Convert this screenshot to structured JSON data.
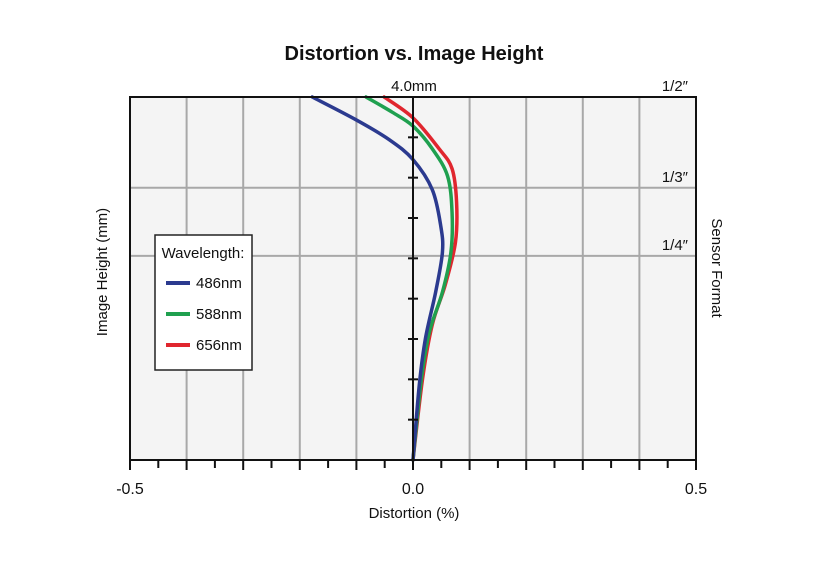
{
  "chart_data": {
    "type": "line",
    "title": "Distortion vs. Image Height",
    "xlabel": "Distortion (%)",
    "ylabel": "Image Height (mm)",
    "right_label": "Sensor Format",
    "xlim": [
      -0.5,
      0.5
    ],
    "ylim": [
      0,
      4.0
    ],
    "x_tick_labels": [
      {
        "value": -0.5,
        "label": "-0.5"
      },
      {
        "value": 0.0,
        "label": "0.0"
      },
      {
        "value": 0.5,
        "label": "0.5"
      }
    ],
    "x_grid_step": 0.1,
    "x_minor_step": 0.05,
    "y_top_label": "4.0mm",
    "y_minor_ticks": 9,
    "sensor_formats": [
      {
        "label": "1/2″",
        "height": 4.0
      },
      {
        "label": "1/3″",
        "height": 3.0
      },
      {
        "label": "1/4″",
        "height": 2.25
      }
    ],
    "grid": true,
    "legend": {
      "title": "Wavelength:",
      "placement": "left"
    },
    "series": [
      {
        "name": "486nm",
        "color": "#2b3a8f",
        "points": [
          [
            0,
            0
          ],
          [
            0.011,
            0.82
          ],
          [
            0.022,
            1.34
          ],
          [
            0.04,
            1.85
          ],
          [
            0.052,
            2.29
          ],
          [
            0.049,
            2.58
          ],
          [
            0.034,
            2.98
          ],
          [
            0,
            3.31
          ],
          [
            -0.042,
            3.53
          ],
          [
            -0.101,
            3.75
          ],
          [
            -0.178,
            4.0
          ]
        ]
      },
      {
        "name": "588nm",
        "color": "#1fa04f",
        "points": [
          [
            0,
            0
          ],
          [
            0.015,
            0.9
          ],
          [
            0.029,
            1.41
          ],
          [
            0.052,
            1.85
          ],
          [
            0.067,
            2.29
          ],
          [
            0.069,
            2.73
          ],
          [
            0.061,
            3.13
          ],
          [
            0.034,
            3.43
          ],
          [
            0,
            3.68
          ],
          [
            -0.036,
            3.83
          ],
          [
            -0.083,
            4.0
          ]
        ]
      },
      {
        "name": "656nm",
        "color": "#e0262e",
        "points": [
          [
            0,
            0
          ],
          [
            0.017,
            0.9
          ],
          [
            0.034,
            1.49
          ],
          [
            0.057,
            1.93
          ],
          [
            0.075,
            2.4
          ],
          [
            0.077,
            2.84
          ],
          [
            0.069,
            3.21
          ],
          [
            0.046,
            3.43
          ],
          [
            0,
            3.77
          ],
          [
            -0.051,
            4.0
          ]
        ]
      }
    ]
  }
}
